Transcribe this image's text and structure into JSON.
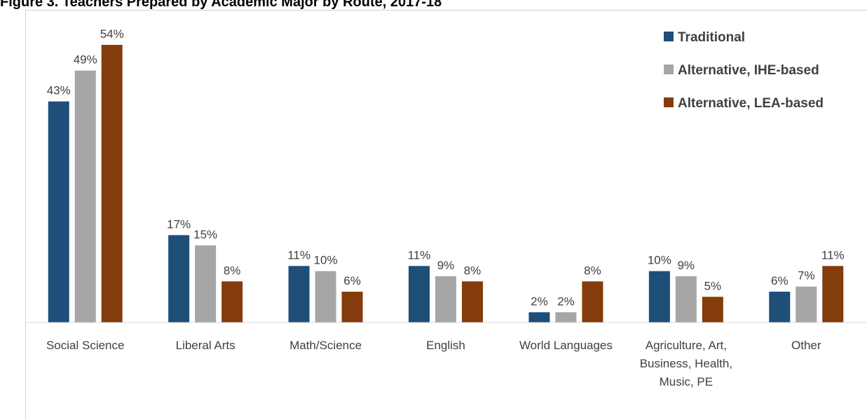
{
  "title": "Figure 3. Teachers Prepared by Academic Major by Route, 2017-18",
  "chart_data": {
    "type": "bar",
    "title": "Figure 3. Teachers Prepared by Academic Major by Route, 2017-18",
    "categories": [
      [
        "Social Science"
      ],
      [
        "Liberal Arts"
      ],
      [
        "Math/Science"
      ],
      [
        "English"
      ],
      [
        "World Languages"
      ],
      [
        "Agriculture, Art,",
        "Business, Health,",
        "Music, PE"
      ],
      [
        "Other"
      ]
    ],
    "series": [
      {
        "name": "Traditional",
        "color": "#1f4e79",
        "values": [
          43,
          17,
          11,
          11,
          2,
          10,
          6
        ],
        "labels": [
          "43%",
          "17%",
          "11%",
          "11%",
          "2%",
          "10%",
          "6%"
        ]
      },
      {
        "name": "Alternative, IHE-based",
        "color": "#a6a6a6",
        "values": [
          49,
          15,
          10,
          9,
          2,
          9,
          7
        ],
        "labels": [
          "49%",
          "15%",
          "10%",
          "9%",
          "2%",
          "9%",
          "7%"
        ]
      },
      {
        "name": "Alternative, LEA-based",
        "color": "#843c0c",
        "values": [
          54,
          8,
          6,
          8,
          8,
          5,
          11
        ],
        "labels": [
          "54%",
          "8%",
          "6%",
          "8%",
          "8%",
          "5%",
          "11%"
        ]
      }
    ],
    "ylim": [
      0,
      54
    ],
    "grid": false,
    "legend_position": "top-right"
  }
}
